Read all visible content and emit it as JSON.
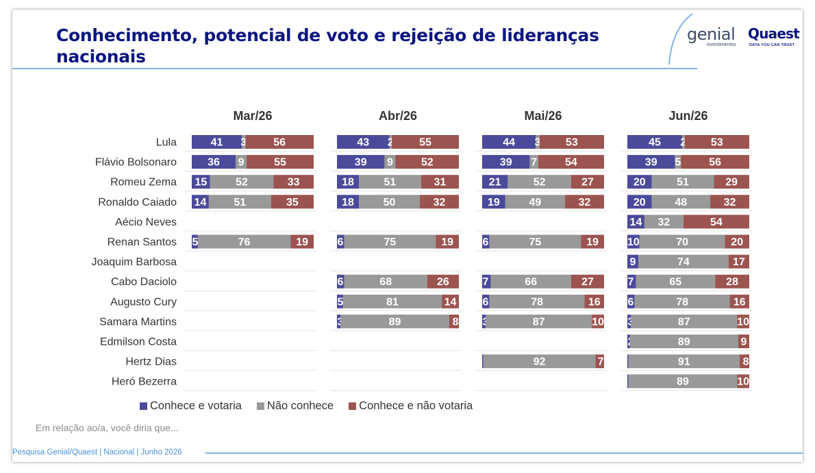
{
  "header": {
    "title": "Conhecimento, potencial de voto e rejeição de lideranças nacionais",
    "logo_genial": "genial",
    "logo_genial_sub": "investimentos",
    "logo_quaest": "Quaest",
    "logo_quaest_sub": "DATA YOU CAN TRUST"
  },
  "chart_data": {
    "type": "bar",
    "stacked": true,
    "orientation": "horizontal",
    "panels": [
      "Mar/26",
      "Abr/26",
      "Mai/26",
      "Jun/26"
    ],
    "categories": [
      "Lula",
      "Flávio Bolsonaro",
      "Romeu Zema",
      "Ronaldo Caiado",
      "Aécio Neves",
      "Renan Santos",
      "Joaquim Barbosa",
      "Cabo Daciolo",
      "Augusto Cury",
      "Samara Martins",
      "Edmilson Costa",
      "Hertz Dias",
      "Heró Bezerra"
    ],
    "series": [
      {
        "name": "Conhece e votaria",
        "color": "#4b4a9a",
        "values": [
          [
            41,
            36,
            15,
            14,
            null,
            5,
            null,
            null,
            null,
            null,
            null,
            null,
            null
          ],
          [
            43,
            39,
            18,
            18,
            null,
            6,
            null,
            6,
            5,
            3,
            null,
            null,
            null
          ],
          [
            44,
            39,
            21,
            19,
            null,
            6,
            null,
            7,
            6,
            3,
            null,
            1,
            null
          ],
          [
            45,
            39,
            20,
            20,
            14,
            10,
            9,
            7,
            6,
            3,
            2,
            1,
            1
          ]
        ]
      },
      {
        "name": "Não conhece",
        "color": "#999999",
        "values": [
          [
            3,
            9,
            52,
            51,
            null,
            76,
            null,
            null,
            null,
            null,
            null,
            null,
            null
          ],
          [
            2,
            9,
            51,
            50,
            null,
            75,
            null,
            68,
            81,
            89,
            null,
            null,
            null
          ],
          [
            3,
            7,
            52,
            49,
            null,
            75,
            null,
            66,
            78,
            87,
            null,
            92,
            null
          ],
          [
            2,
            5,
            51,
            48,
            32,
            70,
            74,
            65,
            78,
            87,
            89,
            91,
            89
          ]
        ]
      },
      {
        "name": "Conhece e não votaria",
        "color": "#9b5450",
        "values": [
          [
            56,
            55,
            33,
            35,
            null,
            19,
            null,
            null,
            null,
            null,
            null,
            null,
            null
          ],
          [
            55,
            52,
            31,
            32,
            null,
            19,
            null,
            26,
            14,
            8,
            null,
            null,
            null
          ],
          [
            53,
            54,
            27,
            32,
            null,
            19,
            null,
            27,
            16,
            10,
            null,
            7,
            null
          ],
          [
            53,
            56,
            29,
            32,
            54,
            20,
            17,
            28,
            16,
            10,
            9,
            8,
            10
          ]
        ]
      }
    ],
    "legend_position": "bottom-left",
    "note": "Em relação ao/a, você diria que..."
  },
  "footer": {
    "source": "Pesquisa Genial/Quaest | Nacional | Junho 2026"
  }
}
